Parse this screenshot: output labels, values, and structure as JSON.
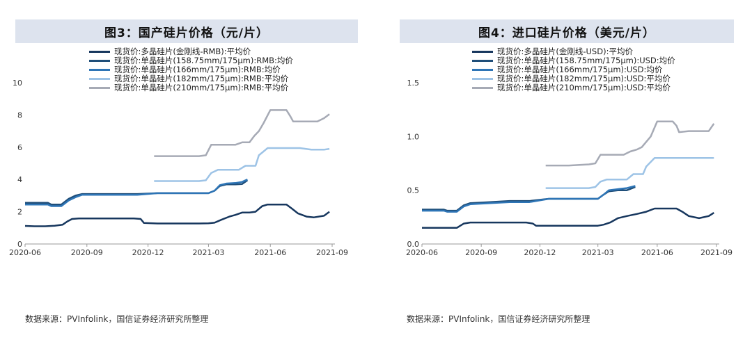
{
  "source_note": "数据来源：PVInfolink，国信证券经济研究所整理",
  "chart_data": [
    {
      "type": "line",
      "title": "图3：国产硅片价格（元/片）",
      "xlabel": "",
      "ylabel": "",
      "x_ticks": [
        "2020-06",
        "2020-09",
        "2020-12",
        "2021-03",
        "2021-06",
        "2021-09"
      ],
      "y_ticks": [
        "0",
        "2",
        "4",
        "6",
        "8",
        "10"
      ],
      "xlim": [
        "2020-06-01",
        "2021-09-01"
      ],
      "ylim": [
        0,
        10
      ],
      "grid": false,
      "legend_position": "top",
      "series": [
        {
          "name": "现货价:多晶硅片(金刚线-RMB):平均价",
          "color": "#17375e",
          "points": [
            [
              "2020-06-01",
              1.12
            ],
            [
              "2020-06-15",
              1.1
            ],
            [
              "2020-07-01",
              1.1
            ],
            [
              "2020-07-15",
              1.13
            ],
            [
              "2020-07-27",
              1.2
            ],
            [
              "2020-08-03",
              1.4
            ],
            [
              "2020-08-10",
              1.55
            ],
            [
              "2020-08-20",
              1.58
            ],
            [
              "2020-09-15",
              1.58
            ],
            [
              "2020-10-15",
              1.58
            ],
            [
              "2020-11-10",
              1.58
            ],
            [
              "2020-11-20",
              1.55
            ],
            [
              "2020-11-25",
              1.3
            ],
            [
              "2020-12-15",
              1.27
            ],
            [
              "2021-01-15",
              1.27
            ],
            [
              "2021-02-15",
              1.27
            ],
            [
              "2021-03-01",
              1.28
            ],
            [
              "2021-03-10",
              1.32
            ],
            [
              "2021-03-20",
              1.5
            ],
            [
              "2021-04-01",
              1.7
            ],
            [
              "2021-04-10",
              1.8
            ],
            [
              "2021-04-20",
              1.95
            ],
            [
              "2021-05-01",
              1.95
            ],
            [
              "2021-05-10",
              2.0
            ],
            [
              "2021-05-20",
              2.35
            ],
            [
              "2021-05-28",
              2.45
            ],
            [
              "2021-06-10",
              2.45
            ],
            [
              "2021-06-25",
              2.45
            ],
            [
              "2021-07-03",
              2.2
            ],
            [
              "2021-07-12",
              1.9
            ],
            [
              "2021-07-25",
              1.7
            ],
            [
              "2021-08-05",
              1.65
            ],
            [
              "2021-08-20",
              1.75
            ],
            [
              "2021-08-28",
              2.0
            ]
          ]
        },
        {
          "name": "现货价:单晶硅片(158.75mm/175μm):RMB:均价",
          "color": "#1f4e79",
          "points": [
            [
              "2020-06-01",
              2.55
            ],
            [
              "2020-06-20",
              2.55
            ],
            [
              "2020-07-05",
              2.55
            ],
            [
              "2020-07-10",
              2.45
            ],
            [
              "2020-07-25",
              2.45
            ],
            [
              "2020-08-05",
              2.8
            ],
            [
              "2020-08-15",
              3.0
            ],
            [
              "2020-08-25",
              3.1
            ],
            [
              "2020-09-15",
              3.1
            ],
            [
              "2020-10-15",
              3.1
            ],
            [
              "2020-11-15",
              3.1
            ],
            [
              "2020-12-15",
              3.15
            ],
            [
              "2021-01-15",
              3.15
            ],
            [
              "2021-02-15",
              3.15
            ],
            [
              "2021-03-01",
              3.15
            ],
            [
              "2021-03-10",
              3.3
            ],
            [
              "2021-03-18",
              3.6
            ],
            [
              "2021-03-28",
              3.7
            ],
            [
              "2021-04-10",
              3.7
            ],
            [
              "2021-04-20",
              3.72
            ],
            [
              "2021-04-28",
              3.95
            ]
          ]
        },
        {
          "name": "现货价:单晶硅片(166mm/175μm):RMB:均价",
          "color": "#2e75b6",
          "points": [
            [
              "2020-06-01",
              2.45
            ],
            [
              "2020-06-20",
              2.45
            ],
            [
              "2020-07-05",
              2.45
            ],
            [
              "2020-07-10",
              2.35
            ],
            [
              "2020-07-25",
              2.35
            ],
            [
              "2020-08-05",
              2.7
            ],
            [
              "2020-08-15",
              2.9
            ],
            [
              "2020-08-25",
              3.05
            ],
            [
              "2020-09-15",
              3.05
            ],
            [
              "2020-10-15",
              3.05
            ],
            [
              "2020-11-15",
              3.05
            ],
            [
              "2020-12-15",
              3.15
            ],
            [
              "2021-01-15",
              3.15
            ],
            [
              "2021-02-15",
              3.15
            ],
            [
              "2021-03-01",
              3.15
            ],
            [
              "2021-03-10",
              3.3
            ],
            [
              "2021-03-18",
              3.65
            ],
            [
              "2021-03-28",
              3.75
            ],
            [
              "2021-04-10",
              3.78
            ],
            [
              "2021-04-20",
              3.85
            ],
            [
              "2021-04-28",
              4.0
            ]
          ]
        },
        {
          "name": "现货价:单晶硅片(182mm/175μm):RMB:平均价",
          "color": "#9dc3e6",
          "points": [
            [
              "2020-12-10",
              3.9
            ],
            [
              "2021-01-15",
              3.9
            ],
            [
              "2021-02-15",
              3.9
            ],
            [
              "2021-02-25",
              3.95
            ],
            [
              "2021-03-05",
              4.4
            ],
            [
              "2021-03-15",
              4.6
            ],
            [
              "2021-04-01",
              4.6
            ],
            [
              "2021-04-15",
              4.6
            ],
            [
              "2021-04-25",
              4.85
            ],
            [
              "2021-05-10",
              4.85
            ],
            [
              "2021-05-15",
              5.5
            ],
            [
              "2021-05-28",
              5.95
            ],
            [
              "2021-06-15",
              5.95
            ],
            [
              "2021-07-15",
              5.95
            ],
            [
              "2021-08-01",
              5.85
            ],
            [
              "2021-08-20",
              5.85
            ],
            [
              "2021-08-28",
              5.9
            ]
          ]
        },
        {
          "name": "现货价:单晶硅片(210mm/175μm):RMB:平均价",
          "color": "#a6aab5",
          "points": [
            [
              "2020-12-10",
              5.45
            ],
            [
              "2021-01-15",
              5.45
            ],
            [
              "2021-02-15",
              5.45
            ],
            [
              "2021-02-25",
              5.5
            ],
            [
              "2021-03-05",
              6.15
            ],
            [
              "2021-03-15",
              6.15
            ],
            [
              "2021-04-10",
              6.15
            ],
            [
              "2021-04-20",
              6.3
            ],
            [
              "2021-05-01",
              6.3
            ],
            [
              "2021-05-08",
              6.7
            ],
            [
              "2021-05-15",
              7.0
            ],
            [
              "2021-05-22",
              7.5
            ],
            [
              "2021-06-01",
              8.3
            ],
            [
              "2021-06-15",
              8.3
            ],
            [
              "2021-06-25",
              8.3
            ],
            [
              "2021-07-01",
              7.9
            ],
            [
              "2021-07-05",
              7.6
            ],
            [
              "2021-07-20",
              7.6
            ],
            [
              "2021-08-10",
              7.6
            ],
            [
              "2021-08-20",
              7.8
            ],
            [
              "2021-08-28",
              8.05
            ]
          ]
        }
      ]
    },
    {
      "type": "line",
      "title": "图4：进口硅片价格（美元/片）",
      "xlabel": "",
      "ylabel": "",
      "x_ticks": [
        "2020-06",
        "2020-09",
        "2020-12",
        "2021-03",
        "2021-06",
        "2021-09"
      ],
      "y_ticks": [
        "0.0",
        "0.5",
        "1.0",
        "1.5"
      ],
      "xlim": [
        "2020-06-01",
        "2021-09-01"
      ],
      "ylim": [
        0,
        1.5
      ],
      "grid": false,
      "legend_position": "top",
      "series": [
        {
          "name": "现货价:多晶硅片(金刚线-USD):平均价",
          "color": "#17375e",
          "points": [
            [
              "2020-06-01",
              0.15
            ],
            [
              "2020-06-20",
              0.15
            ],
            [
              "2020-07-15",
              0.15
            ],
            [
              "2020-07-25",
              0.15
            ],
            [
              "2020-08-05",
              0.19
            ],
            [
              "2020-08-15",
              0.2
            ],
            [
              "2020-09-15",
              0.2
            ],
            [
              "2020-10-15",
              0.2
            ],
            [
              "2020-11-10",
              0.2
            ],
            [
              "2020-11-20",
              0.19
            ],
            [
              "2020-11-25",
              0.17
            ],
            [
              "2020-12-15",
              0.17
            ],
            [
              "2021-01-15",
              0.17
            ],
            [
              "2021-02-15",
              0.17
            ],
            [
              "2021-03-01",
              0.17
            ],
            [
              "2021-03-10",
              0.18
            ],
            [
              "2021-03-20",
              0.2
            ],
            [
              "2021-04-01",
              0.24
            ],
            [
              "2021-04-15",
              0.26
            ],
            [
              "2021-05-01",
              0.28
            ],
            [
              "2021-05-15",
              0.3
            ],
            [
              "2021-05-28",
              0.33
            ],
            [
              "2021-06-15",
              0.33
            ],
            [
              "2021-07-01",
              0.33
            ],
            [
              "2021-07-10",
              0.3
            ],
            [
              "2021-07-20",
              0.26
            ],
            [
              "2021-08-05",
              0.24
            ],
            [
              "2021-08-20",
              0.26
            ],
            [
              "2021-08-28",
              0.29
            ]
          ]
        },
        {
          "name": "现货价:单晶硅片(158.75mm/175μm):USD:均价",
          "color": "#1f4e79",
          "points": [
            [
              "2020-06-01",
              0.32
            ],
            [
              "2020-06-20",
              0.32
            ],
            [
              "2020-07-05",
              0.32
            ],
            [
              "2020-07-10",
              0.31
            ],
            [
              "2020-07-25",
              0.31
            ],
            [
              "2020-08-05",
              0.36
            ],
            [
              "2020-08-15",
              0.38
            ],
            [
              "2020-09-15",
              0.39
            ],
            [
              "2020-10-15",
              0.4
            ],
            [
              "2020-11-15",
              0.4
            ],
            [
              "2020-12-15",
              0.42
            ],
            [
              "2021-01-15",
              0.42
            ],
            [
              "2021-02-15",
              0.42
            ],
            [
              "2021-03-01",
              0.42
            ],
            [
              "2021-03-10",
              0.46
            ],
            [
              "2021-03-18",
              0.49
            ],
            [
              "2021-04-01",
              0.5
            ],
            [
              "2021-04-15",
              0.5
            ],
            [
              "2021-04-28",
              0.53
            ]
          ]
        },
        {
          "name": "现货价:单晶硅片(166mm/175μm):USD:均价",
          "color": "#2e75b6",
          "points": [
            [
              "2020-06-01",
              0.31
            ],
            [
              "2020-06-20",
              0.31
            ],
            [
              "2020-07-05",
              0.31
            ],
            [
              "2020-07-10",
              0.3
            ],
            [
              "2020-07-25",
              0.3
            ],
            [
              "2020-08-05",
              0.35
            ],
            [
              "2020-08-15",
              0.37
            ],
            [
              "2020-09-15",
              0.38
            ],
            [
              "2020-10-15",
              0.39
            ],
            [
              "2020-11-15",
              0.39
            ],
            [
              "2020-12-15",
              0.42
            ],
            [
              "2021-01-15",
              0.42
            ],
            [
              "2021-02-15",
              0.42
            ],
            [
              "2021-03-01",
              0.42
            ],
            [
              "2021-03-10",
              0.46
            ],
            [
              "2021-03-18",
              0.5
            ],
            [
              "2021-04-01",
              0.51
            ],
            [
              "2021-04-15",
              0.52
            ],
            [
              "2021-04-28",
              0.54
            ]
          ]
        },
        {
          "name": "现货价:单晶硅片(182mm/175μm):USD:平均价",
          "color": "#9dc3e6",
          "points": [
            [
              "2020-12-10",
              0.52
            ],
            [
              "2021-01-15",
              0.52
            ],
            [
              "2021-02-15",
              0.52
            ],
            [
              "2021-02-25",
              0.53
            ],
            [
              "2021-03-05",
              0.58
            ],
            [
              "2021-03-15",
              0.6
            ],
            [
              "2021-04-01",
              0.6
            ],
            [
              "2021-04-15",
              0.6
            ],
            [
              "2021-04-25",
              0.65
            ],
            [
              "2021-05-10",
              0.65
            ],
            [
              "2021-05-15",
              0.72
            ],
            [
              "2021-05-28",
              0.8
            ],
            [
              "2021-06-15",
              0.8
            ],
            [
              "2021-07-15",
              0.8
            ],
            [
              "2021-08-15",
              0.8
            ],
            [
              "2021-08-28",
              0.8
            ]
          ]
        },
        {
          "name": "现货价:单晶硅片(210mm/175μm):USD:平均价",
          "color": "#a6aab5",
          "points": [
            [
              "2020-12-10",
              0.73
            ],
            [
              "2021-01-15",
              0.73
            ],
            [
              "2021-02-15",
              0.74
            ],
            [
              "2021-02-25",
              0.75
            ],
            [
              "2021-03-05",
              0.83
            ],
            [
              "2021-03-15",
              0.83
            ],
            [
              "2021-04-10",
              0.83
            ],
            [
              "2021-04-20",
              0.86
            ],
            [
              "2021-05-01",
              0.88
            ],
            [
              "2021-05-08",
              0.9
            ],
            [
              "2021-05-15",
              0.95
            ],
            [
              "2021-05-22",
              1.0
            ],
            [
              "2021-06-01",
              1.14
            ],
            [
              "2021-06-15",
              1.14
            ],
            [
              "2021-06-25",
              1.14
            ],
            [
              "2021-07-01",
              1.1
            ],
            [
              "2021-07-05",
              1.04
            ],
            [
              "2021-07-20",
              1.05
            ],
            [
              "2021-08-10",
              1.05
            ],
            [
              "2021-08-20",
              1.05
            ],
            [
              "2021-08-28",
              1.12
            ]
          ]
        }
      ]
    }
  ]
}
